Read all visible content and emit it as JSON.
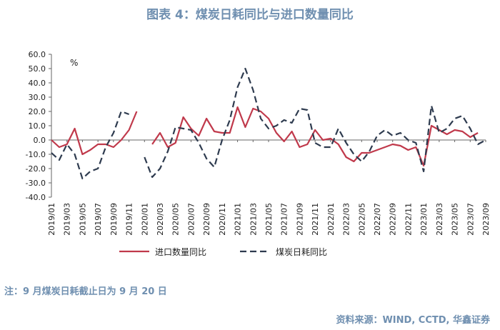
{
  "chart_data": {
    "type": "line",
    "title": "图表 4：煤炭日耗同比与进口数量同比",
    "unit_label": "%",
    "ylim": [
      -40,
      60
    ],
    "yticks": [
      "60.0",
      "50.0",
      "40.0",
      "30.0",
      "20.0",
      "10.0",
      "0.0",
      "-10.0",
      "-20.0",
      "-30.0",
      "-40.0"
    ],
    "x": [
      "2019/01",
      "2019/02",
      "2019/03",
      "2019/04",
      "2019/05",
      "2019/06",
      "2019/07",
      "2019/08",
      "2019/09",
      "2019/10",
      "2019/11",
      "2019/12",
      "2020/01",
      "2020/02",
      "2020/03",
      "2020/04",
      "2020/05",
      "2020/06",
      "2020/07",
      "2020/08",
      "2020/09",
      "2020/10",
      "2020/11",
      "2020/12",
      "2021/01",
      "2021/02",
      "2021/03",
      "2021/04",
      "2021/05",
      "2021/06",
      "2021/07",
      "2021/08",
      "2021/09",
      "2021/10",
      "2021/11",
      "2021/12",
      "2022/01",
      "2022/02",
      "2022/03",
      "2022/04",
      "2022/05",
      "2022/06",
      "2022/07",
      "2022/08",
      "2022/09",
      "2022/10",
      "2022/11",
      "2022/12",
      "2023/01",
      "2023/02",
      "2023/03",
      "2023/04",
      "2023/05",
      "2023/06",
      "2023/07",
      "2023/08",
      "2023/09"
    ],
    "xtick_labels": [
      "2019/01",
      "2019/03",
      "2019/05",
      "2019/07",
      "2019/09",
      "2019/11",
      "2020/01",
      "2020/03",
      "2020/05",
      "2020/07",
      "2020/09",
      "2020/11",
      "2021/01",
      "2021/03",
      "2021/05",
      "2021/07",
      "2021/09",
      "2021/11",
      "2022/01",
      "2022/03",
      "2022/05",
      "2022/07",
      "2022/09",
      "2022/11",
      "2023/01",
      "2023/03",
      "2023/05",
      "2023/07",
      "2023/09"
    ],
    "series": [
      {
        "name": "进口数量同比",
        "color": "#c0394b",
        "style": "solid",
        "values": [
          0,
          -5,
          -3,
          8,
          -10,
          -7,
          -3,
          -3,
          -5,
          0,
          7,
          20,
          null,
          -3,
          5,
          -5,
          -2,
          16,
          8,
          3,
          15,
          6,
          5,
          5,
          23,
          9,
          22,
          20,
          15,
          5,
          -1,
          6,
          -5,
          -3,
          7,
          0,
          1,
          -3,
          -12,
          -15,
          -9,
          -9,
          -7,
          -5,
          -3,
          -4,
          -7,
          -5,
          -18,
          10,
          7,
          4,
          7,
          6,
          2,
          5,
          null
        ]
      },
      {
        "name": "煤炭日耗同比",
        "color": "#2e3b4f",
        "style": "dashed",
        "values": [
          -9,
          -14,
          -3,
          -10,
          -27,
          -22,
          -20,
          -5,
          5,
          20,
          18,
          null,
          -12,
          -26,
          -20,
          -8,
          9,
          8,
          7,
          -2,
          -13,
          -19,
          0,
          14,
          37,
          50,
          35,
          15,
          8,
          10,
          14,
          12,
          22,
          21,
          -2,
          -5,
          -5,
          8,
          -2,
          -10,
          -15,
          -8,
          3,
          7,
          3,
          5,
          0,
          -2,
          -22,
          24,
          5,
          8,
          15,
          17,
          8,
          -3,
          0
        ]
      }
    ]
  },
  "note": "注：9 月煤炭日耗截止日为 9 月 20 日",
  "source": "资料来源：WIND, CCTD, 华鑫证券"
}
